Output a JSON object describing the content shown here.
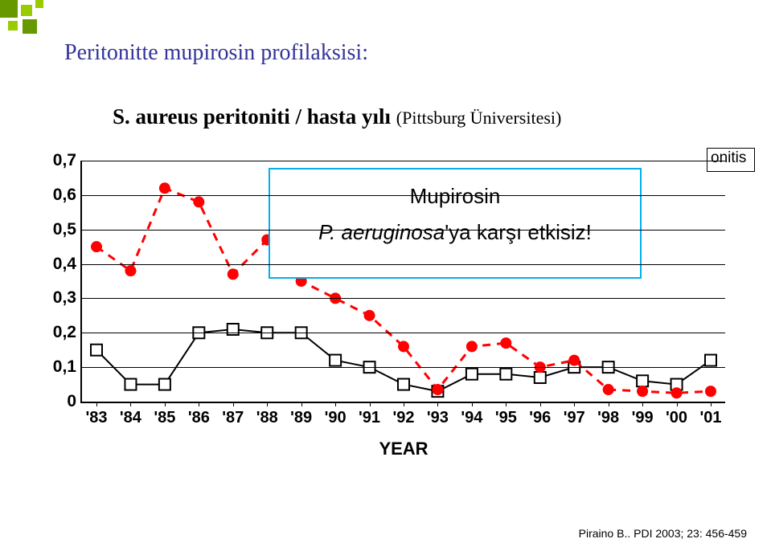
{
  "title": "Peritonitte mupirosin profilaksisi:",
  "subtitle_main": "S. aureus peritoniti / hasta yılı ",
  "subtitle_small": "(Pittsburg Üniversitesi)",
  "legend_fragment": "onitis",
  "overlay_line1": "Mupirosin",
  "overlay_line2_italic": "P. aeruginosa",
  "overlay_line2_rest": "'ya karşı etkisiz!",
  "x_title": "YEAR",
  "citation": "Piraino B.. PDI 2003; 23: 456-459",
  "chart": {
    "background_color": "#ffffff",
    "grid_color": "#000000",
    "y": {
      "min": 0,
      "max": 0.7,
      "ticks": [
        0,
        0.1,
        0.2,
        0.3,
        0.4,
        0.5,
        0.6,
        0.7
      ],
      "labels": [
        "0",
        "0,1",
        "0,2",
        "0,3",
        "0,4",
        "0,5",
        "0,6",
        "0,7"
      ]
    },
    "x": {
      "categories": [
        "'83",
        "'84",
        "'85",
        "'86",
        "'87",
        "'88",
        "'89",
        "'90",
        "'91",
        "'92",
        "'93",
        "'94",
        "'95",
        "'96",
        "'97",
        "'98",
        "'99",
        "'00",
        "'01"
      ]
    },
    "series_a": {
      "color": "#ff0000",
      "marker": "circle",
      "marker_size": 7,
      "line_width": 3,
      "dash": "10,8",
      "values": [
        0.45,
        0.38,
        0.62,
        0.58,
        0.37,
        0.47,
        0.35,
        0.3,
        0.25,
        0.16,
        0.035,
        0.16,
        0.17,
        0.1,
        0.12,
        0.035,
        0.03,
        0.025,
        0.03
      ]
    },
    "series_b": {
      "color": "#000000",
      "marker": "square",
      "marker_size": 7,
      "line_width": 2,
      "values": [
        0.15,
        0.05,
        0.05,
        0.2,
        0.21,
        0.2,
        0.2,
        0.12,
        0.1,
        0.05,
        0.03,
        0.08,
        0.08,
        0.07,
        0.1,
        0.1,
        0.06,
        0.05,
        0.12
      ]
    },
    "overlay_box": {
      "left_pct": 29,
      "top_pct": 3,
      "width_pct": 58,
      "height_pct": 46
    }
  }
}
